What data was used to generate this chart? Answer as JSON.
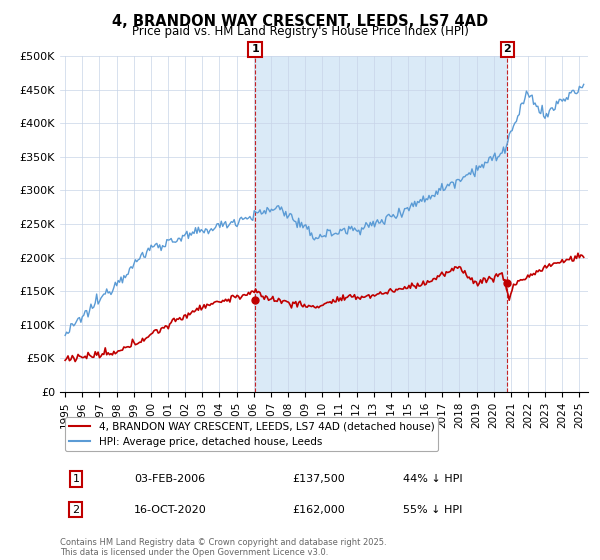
{
  "title": "4, BRANDON WAY CRESCENT, LEEDS, LS7 4AD",
  "subtitle": "Price paid vs. HM Land Registry's House Price Index (HPI)",
  "ylabel_ticks": [
    "£0",
    "£50K",
    "£100K",
    "£150K",
    "£200K",
    "£250K",
    "£300K",
    "£350K",
    "£400K",
    "£450K",
    "£500K"
  ],
  "ytick_values": [
    0,
    50000,
    100000,
    150000,
    200000,
    250000,
    300000,
    350000,
    400000,
    450000,
    500000
  ],
  "legend_line1": "4, BRANDON WAY CRESCENT, LEEDS, LS7 4AD (detached house)",
  "legend_line2": "HPI: Average price, detached house, Leeds",
  "annotation1_date": "03-FEB-2006",
  "annotation1_price": "£137,500",
  "annotation1_hpi": "44% ↓ HPI",
  "annotation2_date": "16-OCT-2020",
  "annotation2_price": "£162,000",
  "annotation2_hpi": "55% ↓ HPI",
  "footer": "Contains HM Land Registry data © Crown copyright and database right 2025.\nThis data is licensed under the Open Government Licence v3.0.",
  "hpi_color": "#5b9bd5",
  "hpi_shade_color": "#daeaf7",
  "price_color": "#c00000",
  "vline_color": "#c00000",
  "annotation_box_color": "#c00000",
  "background_color": "#ffffff",
  "grid_color": "#c8d4e8"
}
